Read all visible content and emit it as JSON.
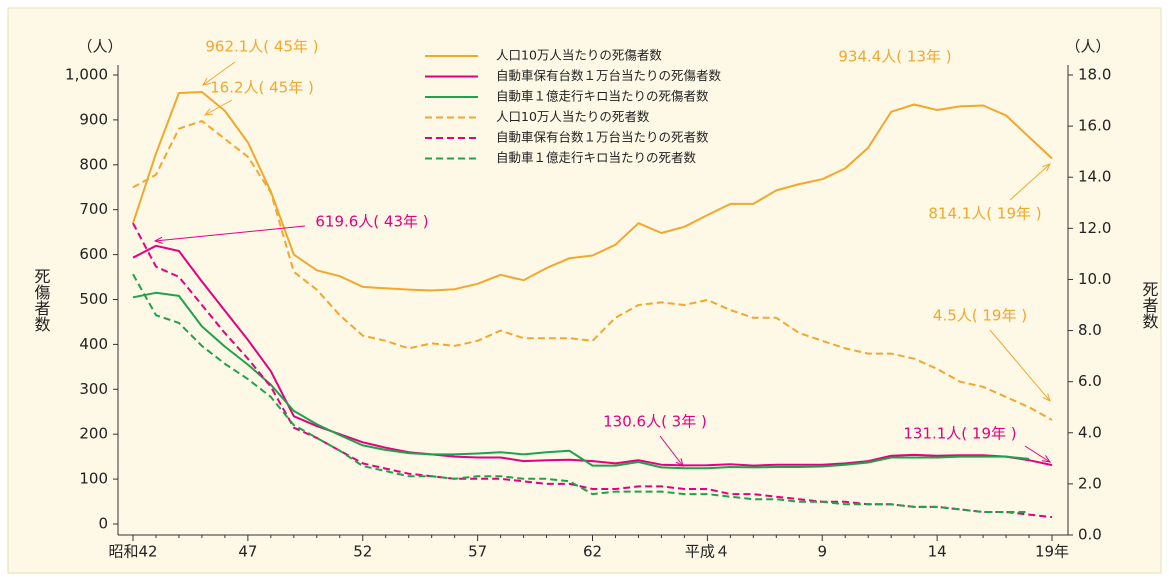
{
  "chart_data": {
    "type": "line",
    "y_unit_label": "（人）",
    "y2_unit_label": "（人）",
    "ylabel": "死傷者数",
    "y2label": "死者数",
    "categories": [
      "昭和42",
      null,
      null,
      null,
      null,
      "47",
      null,
      null,
      null,
      null,
      "52",
      null,
      null,
      null,
      null,
      "57",
      null,
      null,
      null,
      null,
      "62",
      null,
      null,
      null,
      null,
      "平成４",
      null,
      null,
      null,
      null,
      "9",
      null,
      null,
      null,
      null,
      "14",
      null,
      null,
      null,
      null,
      "19年"
    ],
    "ylim": [
      0,
      1000
    ],
    "yticks": [
      0,
      100,
      200,
      300,
      400,
      500,
      600,
      700,
      800,
      900,
      {
        "value": 1000,
        "label": "1,000"
      }
    ],
    "y2lim": [
      0,
      18
    ],
    "y2ticks": [
      {
        "value": 0,
        "label": "0.0"
      },
      {
        "value": 2,
        "label": "2.0"
      },
      {
        "value": 4,
        "label": "4.0"
      },
      {
        "value": 6,
        "label": "6.0"
      },
      {
        "value": 8,
        "label": "8.0"
      },
      {
        "value": 10,
        "label": "10.0"
      },
      {
        "value": 12,
        "label": "12.0"
      },
      {
        "value": 14,
        "label": "14.0"
      },
      {
        "value": 16,
        "label": "16.0"
      },
      {
        "value": 18,
        "label": "18.0"
      }
    ],
    "series": [
      {
        "name": "人口10万人当たりの死傷者数",
        "color": "#f2a72e",
        "dashed": false,
        "values": [
          670,
          825,
          960,
          962.1,
          920,
          850,
          740,
          600,
          565,
          552,
          528,
          525,
          522,
          520,
          523,
          535,
          555,
          543,
          570,
          592,
          598,
          622,
          670,
          648,
          662,
          688,
          713,
          713,
          743,
          757,
          768,
          792,
          838,
          918,
          934.4,
          922,
          930,
          932,
          910,
          862,
          814.1
        ]
      },
      {
        "name": "自動車保有台数１万台当たりの死傷者数",
        "color": "#e4007f",
        "dashed": false,
        "values": [
          593,
          619.6,
          608,
          540,
          475,
          410,
          340,
          240,
          218,
          200,
          182,
          170,
          160,
          155,
          150,
          148,
          148,
          140,
          142,
          143,
          140,
          135,
          142,
          132,
          130.6,
          131,
          133,
          130,
          132,
          132,
          132,
          135,
          140,
          152,
          154,
          152,
          153,
          153,
          150,
          142,
          131.1
        ]
      },
      {
        "name": "自動車１億走行キロ当たりの死傷者数",
        "color": "#1ea24c",
        "dashed": false,
        "values": [
          505,
          515,
          508,
          440,
          395,
          355,
          310,
          252,
          222,
          198,
          175,
          165,
          158,
          155,
          155,
          157,
          160,
          155,
          160,
          163,
          130,
          130,
          138,
          126,
          124,
          124,
          127,
          126,
          127,
          127,
          128,
          132,
          137,
          148,
          148,
          148,
          150,
          150,
          150,
          145,
          null
        ]
      },
      {
        "name": "人口10万人当たりの死者数",
        "color": "#f2a72e",
        "dashed": true,
        "axis": "y2",
        "values": [
          13.6,
          14.1,
          15.9,
          16.2,
          15.5,
          14.8,
          13.4,
          10.3,
          9.6,
          8.6,
          7.8,
          7.6,
          7.3,
          7.5,
          7.4,
          7.6,
          8.0,
          7.7,
          7.7,
          7.7,
          7.6,
          8.5,
          9.0,
          9.1,
          9.0,
          9.2,
          8.8,
          8.5,
          8.5,
          7.9,
          7.6,
          7.3,
          7.1,
          7.1,
          6.9,
          6.5,
          6.0,
          5.8,
          5.4,
          5.0,
          4.5
        ]
      },
      {
        "name": "自動車保有台数１万台当たりの死者数",
        "color": "#e4007f",
        "dashed": true,
        "axis": "y2",
        "values": [
          12.2,
          10.5,
          10.1,
          9.0,
          7.9,
          6.9,
          5.8,
          4.2,
          3.8,
          3.3,
          2.8,
          2.6,
          2.4,
          2.3,
          2.2,
          2.2,
          2.2,
          2.1,
          2.0,
          2.0,
          1.8,
          1.8,
          1.9,
          1.9,
          1.8,
          1.8,
          1.6,
          1.6,
          1.5,
          1.4,
          1.3,
          1.3,
          1.2,
          1.2,
          1.1,
          1.1,
          1.0,
          0.9,
          0.9,
          0.8,
          0.7
        ]
      },
      {
        "name": "自動車１億走行キロ当たりの死者数",
        "color": "#1ea24c",
        "dashed": true,
        "axis": "y2",
        "values": [
          10.2,
          8.6,
          8.3,
          7.4,
          6.7,
          6.1,
          5.4,
          4.3,
          3.8,
          3.3,
          2.7,
          2.5,
          2.3,
          2.3,
          2.2,
          2.3,
          2.3,
          2.2,
          2.2,
          2.1,
          1.6,
          1.7,
          1.7,
          1.7,
          1.6,
          1.6,
          1.5,
          1.4,
          1.4,
          1.3,
          1.3,
          1.2,
          1.2,
          1.2,
          1.1,
          1.1,
          1.0,
          0.9,
          0.9,
          0.9,
          null
        ]
      }
    ],
    "annotations": [
      {
        "text": "962.1人( 45年 )",
        "color": "#f2a72e"
      },
      {
        "text": "16.2人( 45年 )",
        "color": "#f2a72e"
      },
      {
        "text": "619.6人( 43年 )",
        "color": "#e4007f"
      },
      {
        "text": "934.4人( 13年 )",
        "color": "#f2a72e"
      },
      {
        "text": "814.1人( 19年 )",
        "color": "#f2a72e"
      },
      {
        "text": "4.5人( 19年 )",
        "color": "#f2a72e"
      },
      {
        "text": "130.6人( 3年 )",
        "color": "#e4007f"
      },
      {
        "text": "131.1人( 19年 )",
        "color": "#e4007f"
      }
    ]
  }
}
